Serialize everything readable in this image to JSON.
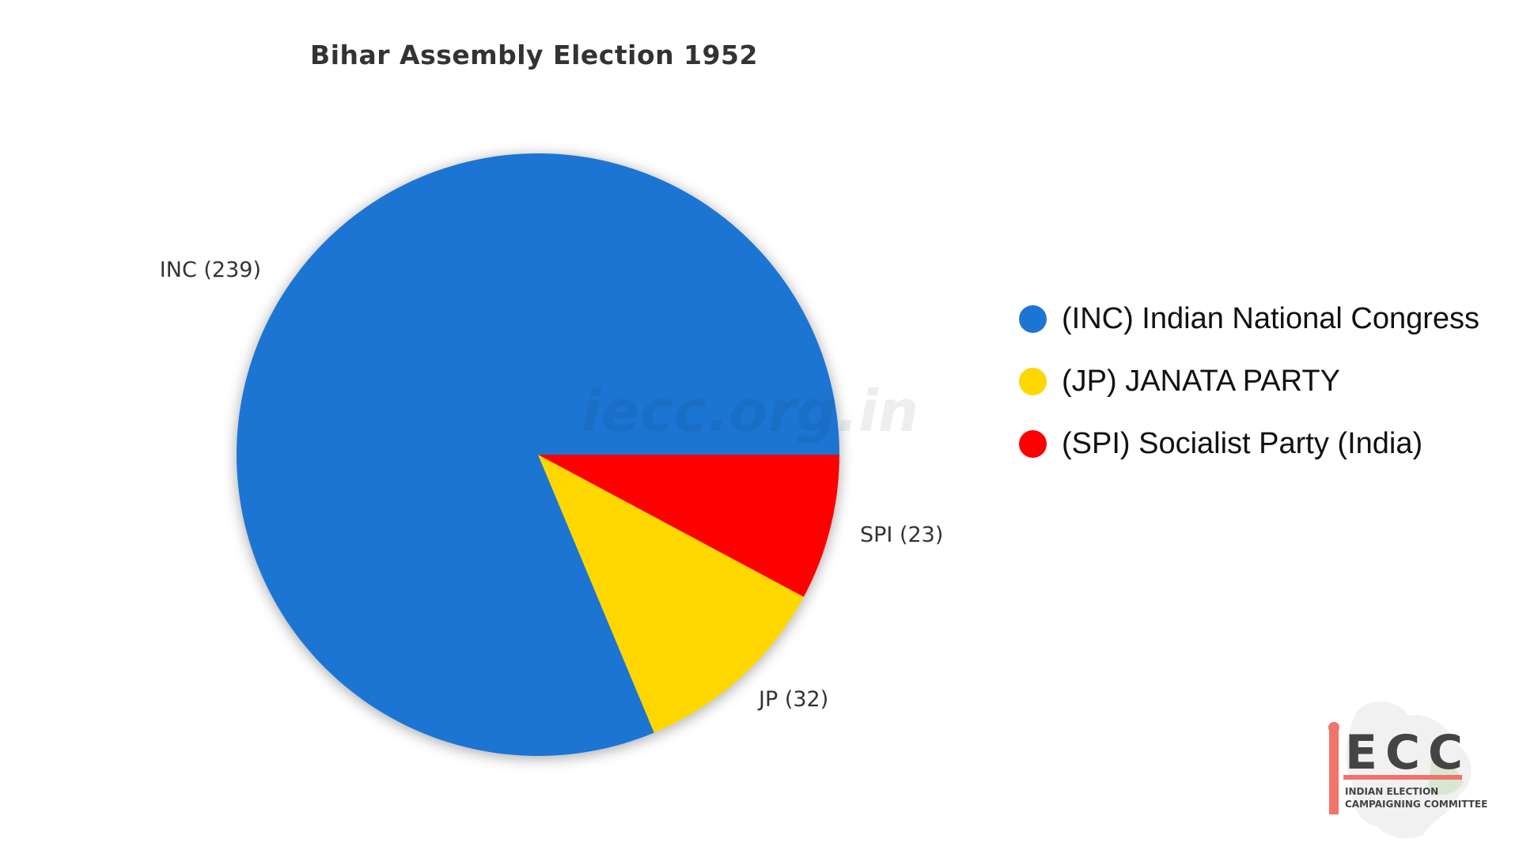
{
  "chart_data": {
    "type": "pie",
    "title": "Bihar Assembly Election 1952",
    "slices": [
      {
        "key": "INC",
        "label": "INC (239)",
        "value": 239,
        "color": "#1c75d3",
        "legend": "(INC) Indian National Congress"
      },
      {
        "key": "JP",
        "label": "JP (32)",
        "value": 32,
        "color": "#ffd700",
        "legend": "(JP) JANATA PARTY"
      },
      {
        "key": "SPI",
        "label": "SPI (23)",
        "value": 23,
        "color": "#ff0000",
        "legend": "(SPI) Socialist Party (India)"
      }
    ],
    "legend_position": "right"
  },
  "watermark": "iecc.org.in",
  "logo": {
    "initials": "ECC",
    "line1": "INDIAN ELECTION",
    "line2": "CAMPAIGNING COMMITTEE",
    "accent_color": "#f0746b"
  }
}
